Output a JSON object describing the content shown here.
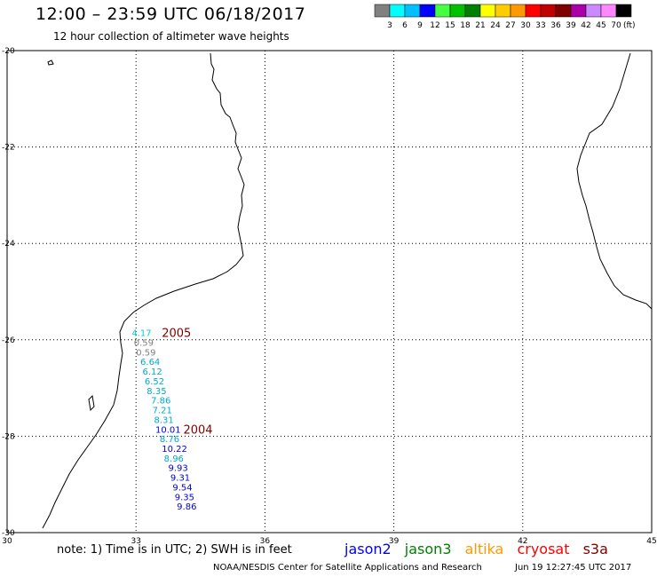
{
  "header": {
    "title": "12:00 – 23:59 UTC 06/18/2017",
    "subtitle": "12 hour collection of altimeter wave heights"
  },
  "legend": {
    "unit": "(ft)",
    "labels": [
      "3",
      "6",
      "9",
      "12",
      "15",
      "18",
      "21",
      "24",
      "27",
      "30",
      "33",
      "36",
      "39",
      "42",
      "45",
      "70"
    ],
    "colors": [
      "#808080",
      "#00ffff",
      "#00c0ff",
      "#0000ff",
      "#44ff44",
      "#00c000",
      "#008000",
      "#ffff00",
      "#ffcc00",
      "#ff9900",
      "#ff0000",
      "#c00000",
      "#800000",
      "#aa00aa",
      "#cc88ff",
      "#ff88ff",
      "#000000"
    ]
  },
  "axes": {
    "lon_labels": [
      "30",
      "33",
      "36",
      "39",
      "42",
      "45"
    ],
    "lat_labels": [
      "-20",
      "-22",
      "-24",
      "-26",
      "-28",
      "-30"
    ]
  },
  "track": {
    "label_color": "#800000",
    "years": [
      {
        "text": "2005",
        "lon": 33.6,
        "lat": -25.85
      },
      {
        "text": "2004",
        "lon": 34.1,
        "lat": -27.85
      }
    ],
    "points": [
      {
        "value": "4.17",
        "lon": 32.9,
        "lat": -25.85,
        "color": "#00ccdd"
      },
      {
        "value": "0.59",
        "lon": 32.95,
        "lat": -26.05,
        "color": "#808080"
      },
      {
        "value": "0.59",
        "lon": 33.0,
        "lat": -26.25,
        "color": "#808080"
      },
      {
        "value": "6.64",
        "lon": 33.1,
        "lat": -26.45,
        "color": "#00aacc"
      },
      {
        "value": "6.12",
        "lon": 33.15,
        "lat": -26.65,
        "color": "#00aacc"
      },
      {
        "value": "6.52",
        "lon": 33.2,
        "lat": -26.85,
        "color": "#00aacc"
      },
      {
        "value": "8.35",
        "lon": 33.25,
        "lat": -27.05,
        "color": "#00aacc"
      },
      {
        "value": "7.86",
        "lon": 33.35,
        "lat": -27.25,
        "color": "#00aacc"
      },
      {
        "value": "7.21",
        "lon": 33.38,
        "lat": -27.45,
        "color": "#00aacc"
      },
      {
        "value": "8.31",
        "lon": 33.42,
        "lat": -27.65,
        "color": "#00aacc"
      },
      {
        "value": "10.01",
        "lon": 33.45,
        "lat": -27.85,
        "color": "#0000dd"
      },
      {
        "value": "8.76",
        "lon": 33.55,
        "lat": -28.05,
        "color": "#00aacc"
      },
      {
        "value": "10.22",
        "lon": 33.6,
        "lat": -28.25,
        "color": "#0000dd"
      },
      {
        "value": "8.96",
        "lon": 33.65,
        "lat": -28.45,
        "color": "#00aacc"
      },
      {
        "value": "9.93",
        "lon": 33.75,
        "lat": -28.65,
        "color": "#0000dd"
      },
      {
        "value": "9.31",
        "lon": 33.8,
        "lat": -28.85,
        "color": "#0000dd"
      },
      {
        "value": "9.54",
        "lon": 33.85,
        "lat": -29.05,
        "color": "#0000dd"
      },
      {
        "value": "9.35",
        "lon": 33.9,
        "lat": -29.25,
        "color": "#0000dd"
      },
      {
        "value": "9.86",
        "lon": 33.95,
        "lat": -29.45,
        "color": "#0000dd"
      }
    ]
  },
  "footer": {
    "note": "note: 1) Time is in UTC; 2) SWH is in feet",
    "satellites": [
      {
        "name": "jason2",
        "color": "#0000ff"
      },
      {
        "name": "jason3",
        "color": "#008000"
      },
      {
        "name": "altika",
        "color": "#ff9900"
      },
      {
        "name": "cryosat",
        "color": "#ff0000"
      },
      {
        "name": "s3a",
        "color": "#800000"
      }
    ],
    "credit": "NOAA/NESDIS Center for Satellite Applications and Research",
    "timestamp": "Jun 19 12:27:45 UTC 2017"
  }
}
